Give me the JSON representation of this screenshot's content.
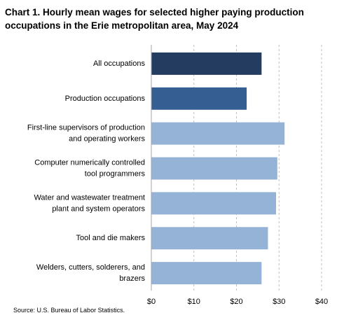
{
  "chart_data": {
    "type": "bar",
    "orientation": "horizontal",
    "title": "Chart 1. Hourly mean wages for selected higher paying production occupations in the Erie metropolitan area, May 2024",
    "categories": [
      [
        "All occupations"
      ],
      [
        "Production occupations"
      ],
      [
        "First-line supervisors of production",
        "and operating workers"
      ],
      [
        "Computer numerically controlled",
        "tool programmers"
      ],
      [
        "Water and wastewater treatment",
        "plant and system operators"
      ],
      [
        "Tool and die makers"
      ],
      [
        "Welders, cutters, solderers, and",
        "brazers"
      ]
    ],
    "values": [
      25.9,
      22.4,
      31.3,
      29.6,
      29.3,
      27.4,
      25.9
    ],
    "bar_colors": [
      "#243c5f",
      "#355f92",
      "#95b3d7",
      "#95b3d7",
      "#95b3d7",
      "#95b3d7",
      "#95b3d7"
    ],
    "xlim": [
      0,
      40
    ],
    "x_ticks": [
      0,
      10,
      20,
      30,
      40
    ],
    "x_tick_labels": [
      "$0",
      "$10",
      "$20",
      "$30",
      "$40"
    ],
    "grid": "vertical dashed",
    "legend": "none"
  },
  "source": "Source: U.S. Bureau of Labor Statistics."
}
